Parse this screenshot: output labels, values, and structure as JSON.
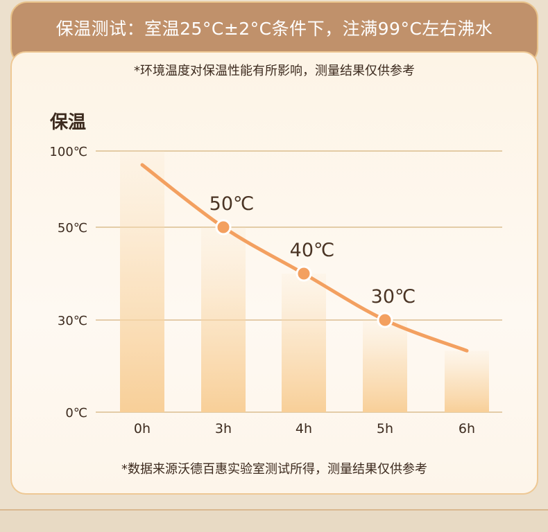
{
  "header": {
    "title": "保温测试：室温25°C±2°C条件下，注满99°C左右沸水"
  },
  "notes": {
    "top": "*环境温度对保温性能有所影响，测量结果仅供参考",
    "bottom": "*数据来源沃德百惠实验室测试所得，测量结果仅供参考"
  },
  "chart_data": {
    "type": "bar",
    "title": "保温",
    "categories": [
      "0h",
      "3h",
      "4h",
      "5h",
      "6h"
    ],
    "values": [
      100,
      50,
      40,
      30,
      20
    ],
    "y_ticks": [
      {
        "label": "100℃",
        "value": 100
      },
      {
        "label": "50℃",
        "value": 50
      },
      {
        "label": "30℃",
        "value": 30
      },
      {
        "label": "0℃",
        "value": 0
      }
    ],
    "line_overlay": {
      "points": [
        {
          "x": "3h",
          "y": 50,
          "label": "50℃"
        },
        {
          "x": "4h",
          "y": 40,
          "label": "40℃"
        },
        {
          "x": "5h",
          "y": 30,
          "label": "30℃"
        }
      ]
    },
    "grid": true
  },
  "colors": {
    "bar": "#f8cf98",
    "line": "#f3a060",
    "grid": "#c9a060",
    "header_bg": "#c0916b"
  }
}
